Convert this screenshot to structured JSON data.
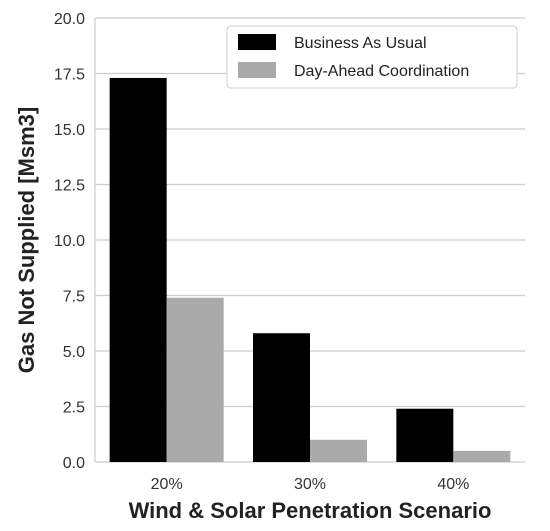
{
  "chart_data": {
    "type": "bar",
    "title": "",
    "xlabel": "Wind & Solar Penetration Scenario",
    "ylabel": "Gas Not Supplied [Msm3]",
    "categories": [
      "20%",
      "30%",
      "40%"
    ],
    "series": [
      {
        "name": "Business As Usual",
        "color": "#000000",
        "values": [
          17.3,
          5.8,
          2.4
        ]
      },
      {
        "name": "Day-Ahead Coordination",
        "color": "#aaaaaa",
        "values": [
          7.4,
          1.0,
          0.5
        ]
      }
    ],
    "ylim": [
      0,
      20
    ],
    "yticks": [
      "0.0",
      "2.5",
      "5.0",
      "7.5",
      "10.0",
      "12.5",
      "15.0",
      "17.5",
      "20.0"
    ],
    "grid": true,
    "legend_position": "top-right"
  }
}
